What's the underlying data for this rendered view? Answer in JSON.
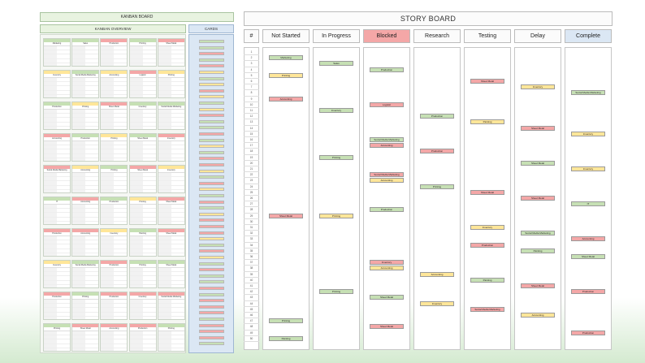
{
  "kanban_title": "KANBAN BOARD",
  "overview_title": "KANBAN OVERVIEW",
  "cards_title": "CARDS",
  "story_title": "STORY BOARD",
  "colors": {
    "green": "#c6e0b4",
    "yellow": "#ffe699",
    "red": "#f4a7a7",
    "blocked_header": "#f4a7a7",
    "complete_header": "#dbe7f4"
  },
  "columns": [
    {
      "label": "#"
    },
    {
      "label": "Not Started"
    },
    {
      "label": "In Progress"
    },
    {
      "label": "Blocked"
    },
    {
      "label": "Research"
    },
    {
      "label": "Testing"
    },
    {
      "label": "Delay"
    },
    {
      "label": "Complete"
    }
  ],
  "row_numbers": [
    "1",
    "2",
    "3",
    "4",
    "5",
    "6",
    "7",
    "8",
    "9",
    "10",
    "11",
    "12",
    "13",
    "14",
    "15",
    "16",
    "17",
    "18",
    "19",
    "20",
    "21",
    "22",
    "23",
    "24",
    "25",
    "26",
    "27",
    "28",
    "29",
    "30",
    "31",
    "32",
    "33",
    "34",
    "35",
    "36",
    "37",
    "38",
    "39",
    "40",
    "41",
    "42",
    "43",
    "44",
    "45",
    "46",
    "47",
    "48",
    "49",
    "50"
  ],
  "cards": [
    {
      "col": 1,
      "row": 2,
      "label": "Marketing",
      "color": "green"
    },
    {
      "col": 1,
      "row": 5,
      "label": "Printing",
      "color": "yellow"
    },
    {
      "col": 1,
      "row": 9,
      "label": "Accounting",
      "color": "red"
    },
    {
      "col": 1,
      "row": 29,
      "label": "Sheet Metal",
      "color": "red"
    },
    {
      "col": 1,
      "row": 47,
      "label": "Printing",
      "color": "green"
    },
    {
      "col": 1,
      "row": 50,
      "label": "Painting",
      "color": "green"
    },
    {
      "col": 2,
      "row": 3,
      "label": "Sales",
      "color": "green"
    },
    {
      "col": 2,
      "row": 11,
      "label": "Inventory",
      "color": "green"
    },
    {
      "col": 2,
      "row": 19,
      "label": "Printing",
      "color": "green"
    },
    {
      "col": 2,
      "row": 29,
      "label": "Printing",
      "color": "yellow"
    },
    {
      "col": 2,
      "row": 42,
      "label": "Printing",
      "color": "green"
    },
    {
      "col": 3,
      "row": 4,
      "label": "Production",
      "color": "green"
    },
    {
      "col": 3,
      "row": 10,
      "label": "Logistic",
      "color": "red"
    },
    {
      "col": 3,
      "row": 16,
      "label": "Social Media Marketing",
      "color": "green"
    },
    {
      "col": 3,
      "row": 17,
      "label": "Accounting",
      "color": "red"
    },
    {
      "col": 3,
      "row": 22,
      "label": "Social Media Marketing",
      "color": "red"
    },
    {
      "col": 3,
      "row": 23,
      "label": "Accounting",
      "color": "yellow"
    },
    {
      "col": 3,
      "row": 28,
      "label": "Production",
      "color": "green"
    },
    {
      "col": 3,
      "row": 37,
      "label": "Inventory",
      "color": "red"
    },
    {
      "col": 3,
      "row": 38,
      "label": "Accounting",
      "color": "yellow"
    },
    {
      "col": 3,
      "row": 43,
      "label": "Sheet Metal",
      "color": "green"
    },
    {
      "col": 3,
      "row": 48,
      "label": "Sheet Metal",
      "color": "red"
    },
    {
      "col": 4,
      "row": 12,
      "label": "Production",
      "color": "green"
    },
    {
      "col": 4,
      "row": 18,
      "label": "Production",
      "color": "red"
    },
    {
      "col": 4,
      "row": 24,
      "label": "Printing",
      "color": "green"
    },
    {
      "col": 4,
      "row": 39,
      "label": "Accounting",
      "color": "yellow"
    },
    {
      "col": 4,
      "row": 44,
      "label": "Inventory",
      "color": "yellow"
    },
    {
      "col": 5,
      "row": 6,
      "label": "Sheet Metal",
      "color": "red"
    },
    {
      "col": 5,
      "row": 13,
      "label": "Painting",
      "color": "yellow"
    },
    {
      "col": 5,
      "row": 25,
      "label": "Sheet Metal",
      "color": "red"
    },
    {
      "col": 5,
      "row": 31,
      "label": "Inventory",
      "color": "yellow"
    },
    {
      "col": 5,
      "row": 34,
      "label": "Production",
      "color": "red"
    },
    {
      "col": 5,
      "row": 40,
      "label": "Painting",
      "color": "green"
    },
    {
      "col": 5,
      "row": 45,
      "label": "Social Media Marketing",
      "color": "red"
    },
    {
      "col": 6,
      "row": 7,
      "label": "Inventory",
      "color": "yellow"
    },
    {
      "col": 6,
      "row": 14,
      "label": "Sheet Metal",
      "color": "red"
    },
    {
      "col": 6,
      "row": 20,
      "label": "Sheet Metal",
      "color": "green"
    },
    {
      "col": 6,
      "row": 26,
      "label": "Sheet Metal",
      "color": "red"
    },
    {
      "col": 6,
      "row": 32,
      "label": "Social Media Marketing",
      "color": "green"
    },
    {
      "col": 6,
      "row": 35,
      "label": "Painting",
      "color": "green"
    },
    {
      "col": 6,
      "row": 41,
      "label": "Sheet Metal",
      "color": "red"
    },
    {
      "col": 6,
      "row": 46,
      "label": "Accounting",
      "color": "yellow"
    },
    {
      "col": 7,
      "row": 8,
      "label": "Social Media Marketing",
      "color": "green"
    },
    {
      "col": 7,
      "row": 15,
      "label": "Inventory",
      "color": "yellow"
    },
    {
      "col": 7,
      "row": 21,
      "label": "Inventory",
      "color": "yellow"
    },
    {
      "col": 7,
      "row": 27,
      "label": "IT",
      "color": "green"
    },
    {
      "col": 7,
      "row": 33,
      "label": "Accounting",
      "color": "red"
    },
    {
      "col": 7,
      "row": 36,
      "label": "Sheet Metal",
      "color": "green"
    },
    {
      "col": 7,
      "row": 42,
      "label": "Production",
      "color": "red"
    },
    {
      "col": 7,
      "row": 49,
      "label": "Production",
      "color": "red"
    }
  ],
  "overview_tiles": [
    {
      "title": "Marketing",
      "color": "green"
    },
    {
      "title": "Sales",
      "color": "green"
    },
    {
      "title": "Production",
      "color": "red"
    },
    {
      "title": "Printing",
      "color": "green"
    },
    {
      "title": "Sheet Metal",
      "color": "red"
    },
    {
      "title": "Inventory",
      "color": "yellow"
    },
    {
      "title": "Social Media Marketing",
      "color": "green"
    },
    {
      "title": "Accounting",
      "color": "yellow"
    },
    {
      "title": "Logistic",
      "color": "red"
    },
    {
      "title": "Printing",
      "color": "yellow"
    },
    {
      "title": "Production",
      "color": "green"
    },
    {
      "title": "Printing",
      "color": "yellow"
    },
    {
      "title": "Sheet Metal",
      "color": "red"
    },
    {
      "title": "Inventory",
      "color": "green"
    },
    {
      "title": "Social Media Marketing",
      "color": "green"
    },
    {
      "title": "Accounting",
      "color": "red"
    },
    {
      "title": "Production",
      "color": "green"
    },
    {
      "title": "Printing",
      "color": "yellow"
    },
    {
      "title": "Sheet Metal",
      "color": "green"
    },
    {
      "title": "Inventory",
      "color": "red"
    },
    {
      "title": "Social Media Marketing",
      "color": "red"
    },
    {
      "title": "Accounting",
      "color": "yellow"
    },
    {
      "title": "Printing",
      "color": "green"
    },
    {
      "title": "Sheet Metal",
      "color": "red"
    },
    {
      "title": "Inventory",
      "color": "yellow"
    },
    {
      "title": "IT",
      "color": "green"
    },
    {
      "title": "Accounting",
      "color": "red"
    },
    {
      "title": "Production",
      "color": "green"
    },
    {
      "title": "Printing",
      "color": "yellow"
    },
    {
      "title": "Sheet Metal",
      "color": "red"
    },
    {
      "title": "Production",
      "color": "red"
    },
    {
      "title": "Accounting",
      "color": "red"
    },
    {
      "title": "Inventory",
      "color": "yellow"
    },
    {
      "title": "Painting",
      "color": "green"
    },
    {
      "title": "Sheet Metal",
      "color": "red"
    },
    {
      "title": "Inventory",
      "color": "yellow"
    },
    {
      "title": "Social Media Marketing",
      "color": "green"
    },
    {
      "title": "Production",
      "color": "red"
    },
    {
      "title": "Printing",
      "color": "green"
    },
    {
      "title": "Sheet Metal",
      "color": "green"
    },
    {
      "title": "Production",
      "color": "red"
    },
    {
      "title": "Printing",
      "color": "green"
    },
    {
      "title": "Production",
      "color": "red"
    },
    {
      "title": "Inventory",
      "color": "red"
    },
    {
      "title": "Social Media Marketing",
      "color": "red"
    },
    {
      "title": "Printing",
      "color": "green"
    },
    {
      "title": "Sheet Metal",
      "color": "red"
    },
    {
      "title": "Accounting",
      "color": "red"
    },
    {
      "title": "Production",
      "color": "red"
    },
    {
      "title": "Printing",
      "color": "green"
    }
  ]
}
